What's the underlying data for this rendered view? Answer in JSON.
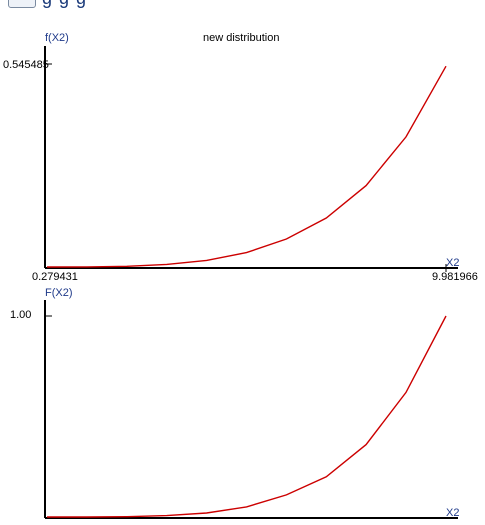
{
  "top_cut_text": "g g   g",
  "bottom_cut_text": "",
  "chart_data": [
    {
      "type": "line",
      "title": "new distribution",
      "ylabel": "f(X2)",
      "xlabel": "X2",
      "xlim": [
        0.279431,
        9.981966
      ],
      "ylim": [
        0,
        0.545485
      ],
      "tick_labels": {
        "x_min": "0.279431",
        "x_max": "9.981966",
        "y_max": "0.545485"
      },
      "series": [
        {
          "color": "#cc0000",
          "x": [
            0.279431,
            1.25,
            2.22,
            3.19,
            4.16,
            5.13,
            6.1,
            7.07,
            8.04,
            9.01,
            9.981966
          ],
          "y": [
            0.0,
            0.0002,
            0.002,
            0.007,
            0.018,
            0.039,
            0.076,
            0.133,
            0.221,
            0.353,
            0.545
          ]
        }
      ]
    },
    {
      "type": "line",
      "title": "",
      "ylabel": "F(X2)",
      "xlabel": "X2",
      "xlim": [
        0.279431,
        9.981966
      ],
      "ylim": [
        0,
        1.0
      ],
      "tick_labels": {
        "y_max": "1.00"
      },
      "series": [
        {
          "color": "#cc0000",
          "x": [
            0.279431,
            1.25,
            2.22,
            3.19,
            4.16,
            5.13,
            6.1,
            7.07,
            8.04,
            9.01,
            9.981966
          ],
          "y": [
            0.0,
            0.0001,
            0.0015,
            0.007,
            0.02,
            0.05,
            0.11,
            0.2,
            0.36,
            0.62,
            1.0
          ]
        }
      ]
    }
  ]
}
